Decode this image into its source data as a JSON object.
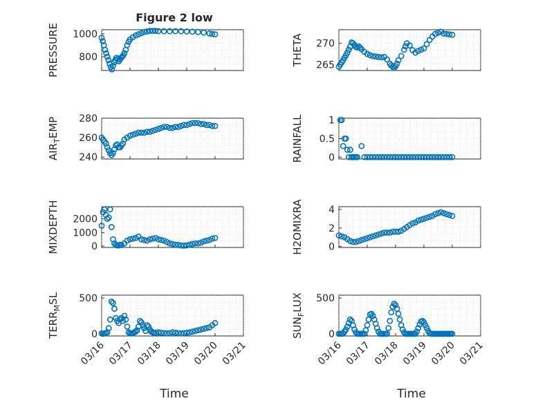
{
  "figure": {
    "title": "Figure 2 low",
    "xlabel": "Time",
    "x_ticks": [
      "03/16",
      "03/17",
      "03/18",
      "03/19",
      "03/20",
      "03/21"
    ],
    "marker_color": "#0072BD"
  },
  "chart_data": [
    {
      "type": "scatter",
      "ylabel": "PRESSURE",
      "yticks": [
        800,
        1000
      ],
      "ylim": [
        680,
        1035
      ],
      "x": [
        0,
        0.04,
        0.08,
        0.12,
        0.16,
        0.2,
        0.24,
        0.28,
        0.32,
        0.36,
        0.4,
        0.44,
        0.48,
        0.52,
        0.56,
        0.6,
        0.64,
        0.68,
        0.72,
        0.76,
        0.8,
        0.85,
        0.9,
        0.95,
        1.0,
        1.1,
        1.2,
        1.3,
        1.4,
        1.5,
        1.6,
        1.7,
        1.8,
        1.9,
        2.0,
        2.2,
        2.4,
        2.6,
        2.8,
        3.0,
        3.2,
        3.4,
        3.6,
        3.8,
        3.9,
        4.0
      ],
      "y": [
        965,
        935,
        900,
        860,
        830,
        800,
        770,
        740,
        710,
        690,
        720,
        750,
        770,
        790,
        780,
        760,
        775,
        790,
        800,
        810,
        830,
        860,
        900,
        930,
        950,
        970,
        985,
        995,
        1005,
        1015,
        1020,
        1025,
        1025,
        1025,
        1022,
        1022,
        1022,
        1022,
        1022,
        1020,
        1018,
        1015,
        1010,
        1003,
        998,
        995
      ]
    },
    {
      "type": "scatter",
      "ylabel": "THETA",
      "yticks": [
        265,
        270
      ],
      "ylim": [
        263.6,
        273.2
      ],
      "x": [
        0,
        0.05,
        0.1,
        0.15,
        0.2,
        0.25,
        0.3,
        0.35,
        0.4,
        0.45,
        0.5,
        0.55,
        0.6,
        0.65,
        0.7,
        0.75,
        0.8,
        0.9,
        1.0,
        1.1,
        1.2,
        1.3,
        1.4,
        1.5,
        1.6,
        1.7,
        1.8,
        1.85,
        1.9,
        1.95,
        2.0,
        2.05,
        2.1,
        2.2,
        2.3,
        2.35,
        2.4,
        2.5,
        2.6,
        2.7,
        2.8,
        2.9,
        3.0,
        3.1,
        3.2,
        3.3,
        3.4,
        3.5,
        3.6,
        3.7,
        3.8,
        3.9,
        4.0
      ],
      "y": [
        264.5,
        265,
        265.5,
        266,
        266.6,
        267.2,
        267.8,
        268.5,
        269.2,
        270.2,
        270,
        269.6,
        269.2,
        269,
        269.3,
        269,
        268.6,
        268,
        267.5,
        267.2,
        267,
        266.9,
        266.8,
        266.7,
        266.8,
        266.2,
        265.2,
        264.8,
        264.5,
        264.2,
        264.6,
        265.2,
        266,
        267,
        268.5,
        269.3,
        270,
        269.5,
        268.4,
        267.8,
        268.2,
        268.5,
        268.8,
        269.8,
        270.8,
        271.6,
        272.2,
        272.5,
        272.7,
        272.3,
        272.2,
        272.1,
        272
      ]
    },
    {
      "type": "scatter",
      "ylabel": "AIR_TEMP",
      "yticks": [
        240,
        260,
        280
      ],
      "ylim": [
        238,
        280
      ],
      "x": [
        0,
        0.05,
        0.1,
        0.15,
        0.2,
        0.25,
        0.3,
        0.35,
        0.4,
        0.45,
        0.5,
        0.55,
        0.6,
        0.65,
        0.7,
        0.75,
        0.8,
        0.9,
        1.0,
        1.1,
        1.2,
        1.3,
        1.4,
        1.5,
        1.6,
        1.7,
        1.8,
        1.9,
        2.0,
        2.1,
        2.2,
        2.3,
        2.4,
        2.5,
        2.6,
        2.7,
        2.8,
        2.9,
        3.0,
        3.1,
        3.2,
        3.3,
        3.4,
        3.5,
        3.6,
        3.7,
        3.8,
        3.9,
        4.0
      ],
      "y": [
        260,
        258,
        256,
        254,
        250,
        247,
        244,
        242,
        244,
        248,
        252,
        253,
        250,
        250,
        252,
        254,
        258,
        260,
        262,
        263,
        264,
        265,
        265,
        265,
        266,
        266,
        267,
        268,
        269,
        270,
        271,
        271,
        270,
        270,
        271,
        271,
        272,
        273,
        273,
        274,
        275,
        275,
        275,
        274,
        274,
        273,
        273,
        272,
        272
      ]
    },
    {
      "type": "scatter",
      "ylabel": "RAINFALL",
      "yticks": [
        0,
        0.5,
        1
      ],
      "ylim": [
        -0.05,
        1.05
      ],
      "x": [
        0.05,
        0.1,
        0.15,
        0.2,
        0.25,
        0.3,
        0.35,
        0.4,
        0.45,
        0.5,
        0.55,
        0.6,
        0.65,
        0.8,
        0.9,
        1.0,
        1.1,
        1.2,
        1.3,
        1.4,
        1.5,
        1.6,
        1.7,
        1.8,
        1.9,
        2.0,
        2.1,
        2.2,
        2.3,
        2.4,
        2.5,
        2.6,
        2.7,
        2.8,
        2.9,
        3.0,
        3.1,
        3.2,
        3.3,
        3.4,
        3.5,
        3.6,
        3.7,
        3.8,
        3.9,
        4.0
      ],
      "y": [
        1,
        1,
        0.3,
        0.5,
        0.5,
        0.2,
        0,
        0.2,
        0,
        0,
        0,
        0,
        0,
        0.3,
        0,
        0,
        0,
        0,
        0,
        0,
        0,
        0,
        0,
        0,
        0,
        0,
        0,
        0,
        0,
        0,
        0,
        0,
        0,
        0,
        0,
        0,
        0,
        0,
        0,
        0,
        0,
        0,
        0,
        0,
        0,
        0
      ]
    },
    {
      "type": "scatter",
      "ylabel": "MIXDEPTH",
      "yticks": [
        0,
        1000,
        2000
      ],
      "ylim": [
        -100,
        2900
      ],
      "x": [
        0,
        0.05,
        0.1,
        0.15,
        0.2,
        0.25,
        0.3,
        0.35,
        0.4,
        0.45,
        0.5,
        0.55,
        0.6,
        0.65,
        0.7,
        0.8,
        0.9,
        1.0,
        1.1,
        1.2,
        1.3,
        1.4,
        1.5,
        1.6,
        1.7,
        1.8,
        1.9,
        2.0,
        2.1,
        2.2,
        2.3,
        2.4,
        2.5,
        2.6,
        2.7,
        2.8,
        2.9,
        3.0,
        3.1,
        3.2,
        3.3,
        3.4,
        3.5,
        3.6,
        3.7,
        3.8,
        3.9,
        4.0
      ],
      "y": [
        1500,
        2500,
        2700,
        2300,
        2000,
        2100,
        2700,
        1400,
        500,
        200,
        100,
        50,
        50,
        100,
        80,
        200,
        400,
        500,
        550,
        600,
        700,
        500,
        450,
        400,
        500,
        550,
        600,
        500,
        450,
        400,
        300,
        200,
        150,
        100,
        80,
        50,
        30,
        50,
        100,
        150,
        200,
        200,
        250,
        350,
        400,
        450,
        550,
        600
      ]
    },
    {
      "type": "scatter",
      "ylabel": "H2OMIXRA",
      "yticks": [
        0,
        2,
        4
      ],
      "ylim": [
        -0.1,
        4.3
      ],
      "x": [
        0,
        0.1,
        0.2,
        0.3,
        0.4,
        0.5,
        0.6,
        0.7,
        0.8,
        0.9,
        1.0,
        1.1,
        1.2,
        1.3,
        1.4,
        1.5,
        1.6,
        1.7,
        1.8,
        1.9,
        2.0,
        2.1,
        2.2,
        2.3,
        2.4,
        2.5,
        2.6,
        2.7,
        2.8,
        2.9,
        3.0,
        3.1,
        3.2,
        3.3,
        3.4,
        3.5,
        3.6,
        3.7,
        3.8,
        3.9,
        4.0
      ],
      "y": [
        1.2,
        1.1,
        1.0,
        0.8,
        0.6,
        0.5,
        0.5,
        0.6,
        0.7,
        0.8,
        0.9,
        1.0,
        1.1,
        1.2,
        1.3,
        1.4,
        1.5,
        1.5,
        1.5,
        1.6,
        1.6,
        1.6,
        1.7,
        1.9,
        2.1,
        2.3,
        2.5,
        2.6,
        2.8,
        2.9,
        3.0,
        3.1,
        3.2,
        3.3,
        3.5,
        3.6,
        3.7,
        3.6,
        3.5,
        3.4,
        3.3
      ]
    },
    {
      "type": "scatter",
      "ylabel": "TERR_MSL",
      "yticks": [
        0,
        500
      ],
      "ylim": [
        -30,
        540
      ],
      "x": [
        0,
        0.05,
        0.1,
        0.15,
        0.2,
        0.25,
        0.3,
        0.35,
        0.4,
        0.45,
        0.5,
        0.55,
        0.6,
        0.65,
        0.7,
        0.75,
        0.8,
        0.85,
        0.9,
        0.95,
        1.0,
        1.05,
        1.1,
        1.15,
        1.2,
        1.25,
        1.3,
        1.35,
        1.4,
        1.45,
        1.5,
        1.55,
        1.6,
        1.65,
        1.7,
        1.75,
        1.8,
        1.85,
        1.9,
        2.0,
        2.1,
        2.2,
        2.3,
        2.4,
        2.5,
        2.6,
        2.7,
        2.8,
        2.9,
        3.0,
        3.1,
        3.2,
        3.3,
        3.4,
        3.5,
        3.6,
        3.7,
        3.8,
        3.9,
        4.0
      ],
      "y": [
        5,
        0,
        5,
        10,
        20,
        80,
        200,
        450,
        430,
        350,
        220,
        180,
        150,
        200,
        220,
        180,
        250,
        200,
        100,
        20,
        10,
        5,
        10,
        20,
        30,
        50,
        100,
        180,
        160,
        120,
        80,
        40,
        120,
        100,
        60,
        30,
        20,
        10,
        15,
        20,
        15,
        10,
        5,
        10,
        20,
        15,
        10,
        5,
        10,
        15,
        20,
        30,
        40,
        50,
        60,
        70,
        80,
        90,
        120,
        150
      ]
    },
    {
      "type": "scatter",
      "ylabel": "SUN_FLUX",
      "yticks": [
        0,
        500
      ],
      "ylim": [
        -30,
        540
      ],
      "x": [
        0,
        0.05,
        0.1,
        0.15,
        0.2,
        0.25,
        0.3,
        0.35,
        0.4,
        0.45,
        0.5,
        0.55,
        0.6,
        0.65,
        0.7,
        0.75,
        0.8,
        0.85,
        0.9,
        0.95,
        1.0,
        1.05,
        1.1,
        1.15,
        1.2,
        1.25,
        1.3,
        1.35,
        1.4,
        1.45,
        1.5,
        1.55,
        1.6,
        1.65,
        1.7,
        1.75,
        1.8,
        1.85,
        1.9,
        1.95,
        2.0,
        2.05,
        2.1,
        2.15,
        2.2,
        2.25,
        2.3,
        2.35,
        2.4,
        2.45,
        2.5,
        2.55,
        2.6,
        2.65,
        2.7,
        2.75,
        2.8,
        2.85,
        2.9,
        2.95,
        3.0,
        3.05,
        3.1,
        3.15,
        3.2,
        3.25,
        3.3,
        3.35,
        3.4,
        3.45,
        3.5,
        3.55,
        3.6,
        3.65,
        3.7,
        3.75,
        3.8,
        3.85,
        3.9,
        3.95,
        4.0
      ],
      "y": [
        0,
        0,
        0,
        5,
        30,
        60,
        100,
        150,
        200,
        180,
        120,
        60,
        20,
        0,
        0,
        0,
        0,
        0,
        0,
        50,
        120,
        200,
        270,
        280,
        250,
        200,
        140,
        80,
        30,
        0,
        0,
        0,
        0,
        0,
        0,
        80,
        180,
        300,
        380,
        420,
        400,
        350,
        280,
        200,
        120,
        60,
        20,
        0,
        0,
        0,
        0,
        0,
        0,
        0,
        0,
        30,
        80,
        130,
        170,
        180,
        160,
        120,
        80,
        40,
        10,
        0,
        0,
        0,
        0,
        0,
        0,
        0,
        0,
        0,
        0,
        0,
        0,
        0,
        0,
        0,
        0
      ]
    }
  ]
}
